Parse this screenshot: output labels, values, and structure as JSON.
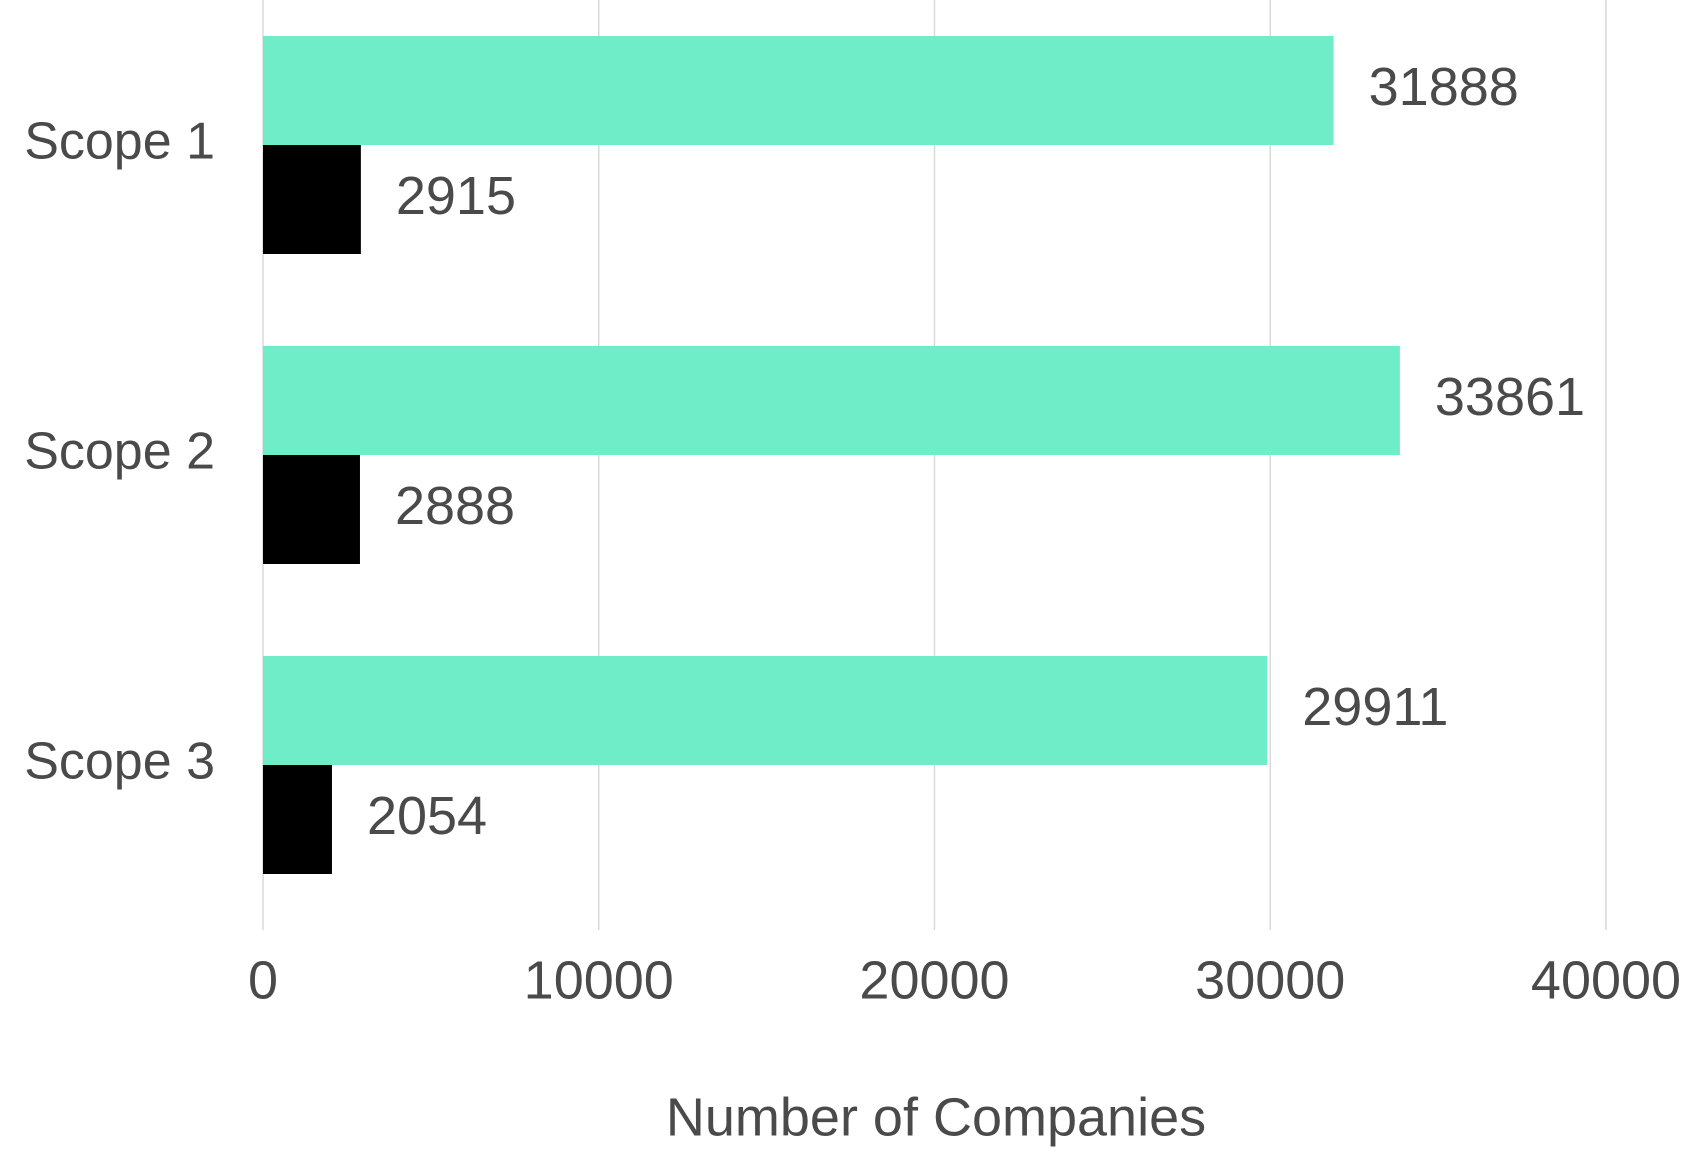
{
  "chart_data": {
    "type": "bar",
    "orientation": "horizontal",
    "categories": [
      "Scope 1",
      "Scope 2",
      "Scope 3"
    ],
    "series": [
      {
        "color": "#6eedc8",
        "values": [
          31888,
          33861,
          29911
        ]
      },
      {
        "color": "#000000",
        "values": [
          2915,
          2888,
          2054
        ]
      }
    ],
    "xlabel": "Number of Companies",
    "xlim": [
      0,
      40000
    ],
    "xticks": [
      0,
      10000,
      20000,
      30000,
      40000
    ],
    "grid": true
  }
}
